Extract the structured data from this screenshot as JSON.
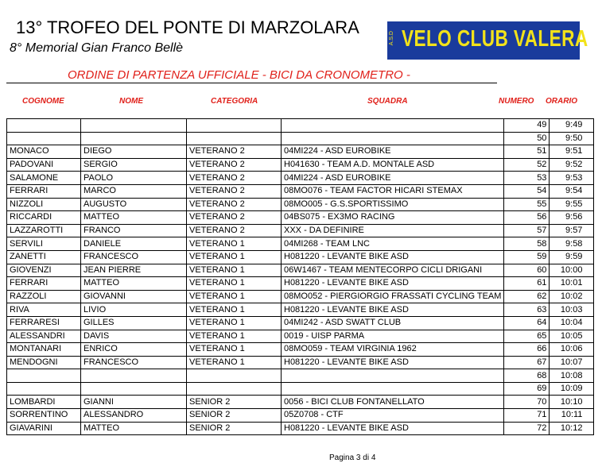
{
  "header": {
    "title": "13° TROFEO DEL PONTE DI MARZOLARA",
    "subtitle": "8° Memorial Gian Franco Bellè",
    "logo": {
      "text": "VELO CLUB VALERA",
      "side": "A.S.D"
    },
    "heading": "ORDINE DI PARTENZA UFFICIALE - BICI DA CRONOMETRO -"
  },
  "table": {
    "headers": [
      "COGNOME",
      "NOME",
      "CATEGORIA",
      "SQUADRA",
      "NUMERO",
      "ORARIO"
    ],
    "rows": [
      [
        null,
        null,
        null,
        null,
        49,
        "9:49"
      ],
      [
        null,
        null,
        null,
        null,
        50,
        "9:50"
      ],
      [
        "MONACO",
        "DIEGO",
        "VETERANO 2",
        "04MI224 - ASD EUROBIKE",
        51,
        "9:51"
      ],
      [
        "PADOVANI",
        "SERGIO",
        "VETERANO 2",
        "H041630 - TEAM A.D. MONTALE ASD",
        52,
        "9:52"
      ],
      [
        "SALAMONE",
        "PAOLO",
        "VETERANO 2",
        "04MI224 - ASD EUROBIKE",
        53,
        "9:53"
      ],
      [
        "FERRARI",
        "MARCO",
        "VETERANO 2",
        "08MO076 - TEAM FACTOR HICARI STEMAX",
        54,
        "9:54"
      ],
      [
        "NIZZOLI",
        "AUGUSTO",
        "VETERANO 2",
        "08MO005 - G.S.SPORTISSIMO",
        55,
        "9:55"
      ],
      [
        "RICCARDI",
        "MATTEO",
        "VETERANO 2",
        "04BS075 - EX3MO RACING",
        56,
        "9:56"
      ],
      [
        "LAZZAROTTI",
        "FRANCO",
        "VETERANO 2",
        "XXX - DA DEFINIRE",
        57,
        "9:57"
      ],
      [
        "SERVILI",
        "DANIELE",
        "VETERANO 1",
        "04MI268 - TEAM LNC",
        58,
        "9:58"
      ],
      [
        "ZANETTI",
        "FRANCESCO",
        "VETERANO 1",
        "H081220 - LEVANTE BIKE ASD",
        59,
        "9:59"
      ],
      [
        "GIOVENZI",
        "JEAN PIERRE",
        "VETERANO 1",
        "06W1467 - TEAM MENTECORPO CICLI DRIGANI",
        60,
        "10:00"
      ],
      [
        "FERRARI",
        "MATTEO",
        "VETERANO 1",
        "H081220 - LEVANTE BIKE ASD",
        61,
        "10:01"
      ],
      [
        "RAZZOLI",
        "GIOVANNI",
        "VETERANO 1",
        "08MO052 - PIERGIORGIO FRASSATI CYCLING TEAM",
        62,
        "10:02"
      ],
      [
        "RIVA",
        "LIVIO",
        "VETERANO 1",
        "H081220 - LEVANTE BIKE ASD",
        63,
        "10:03"
      ],
      [
        "FERRARESI",
        "GILLES",
        "VETERANO 1",
        "04MI242 - ASD SWATT CLUB",
        64,
        "10:04"
      ],
      [
        "ALESSANDRI",
        "DAVIS",
        "VETERANO 1",
        "0019 - UISP PARMA",
        65,
        "10:05"
      ],
      [
        "MONTANARI",
        "ENRICO",
        "VETERANO 1",
        "08MO059 - TEAM VIRGINIA 1962",
        66,
        "10:06"
      ],
      [
        "MENDOGNI",
        "FRANCESCO",
        "VETERANO 1",
        "H081220 - LEVANTE BIKE ASD",
        67,
        "10:07"
      ],
      [
        null,
        null,
        null,
        null,
        68,
        "10:08"
      ],
      [
        null,
        null,
        null,
        null,
        69,
        "10:09"
      ],
      [
        "LOMBARDI",
        "GIANNI",
        "SENIOR 2",
        "0056 - BICI CLUB FONTANELLATO",
        70,
        "10:10"
      ],
      [
        "SORRENTINO",
        "ALESSANDRO",
        "SENIOR 2",
        "05Z0708 - CTF",
        71,
        "10:11"
      ],
      [
        "GIAVARINI",
        "MATTEO",
        "SENIOR 2",
        "H081220 - LEVANTE BIKE ASD",
        72,
        "10:12"
      ]
    ]
  },
  "footer": {
    "page": "Pagina 3 di 4"
  }
}
